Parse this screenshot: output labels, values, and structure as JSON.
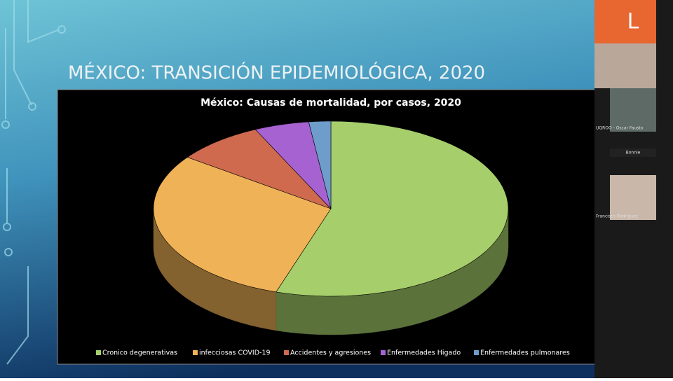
{
  "slide": {
    "title": "MÉXICO: TRANSICIÓN EPIDEMIOLÓGICA, 2020"
  },
  "chart_data": {
    "type": "pie",
    "title": "México: Causas de mortalidad, por casos, 2020",
    "categories": [
      "Cronico degenerativas",
      "infecciosas COVID-19",
      "Accidentes y agresiones",
      "Enfermedades Higado",
      "Enfermedades pulmonares"
    ],
    "values": [
      55,
      30,
      8,
      5,
      2
    ],
    "colors": [
      "#a6cf6b",
      "#efb257",
      "#cf6a4f",
      "#a762d2",
      "#6e9ccb"
    ]
  },
  "participants": {
    "host_initial": "L",
    "names": [
      "UQROO - Oscar Fausto",
      "Bonnie",
      "Francisco Rodriguez"
    ]
  }
}
